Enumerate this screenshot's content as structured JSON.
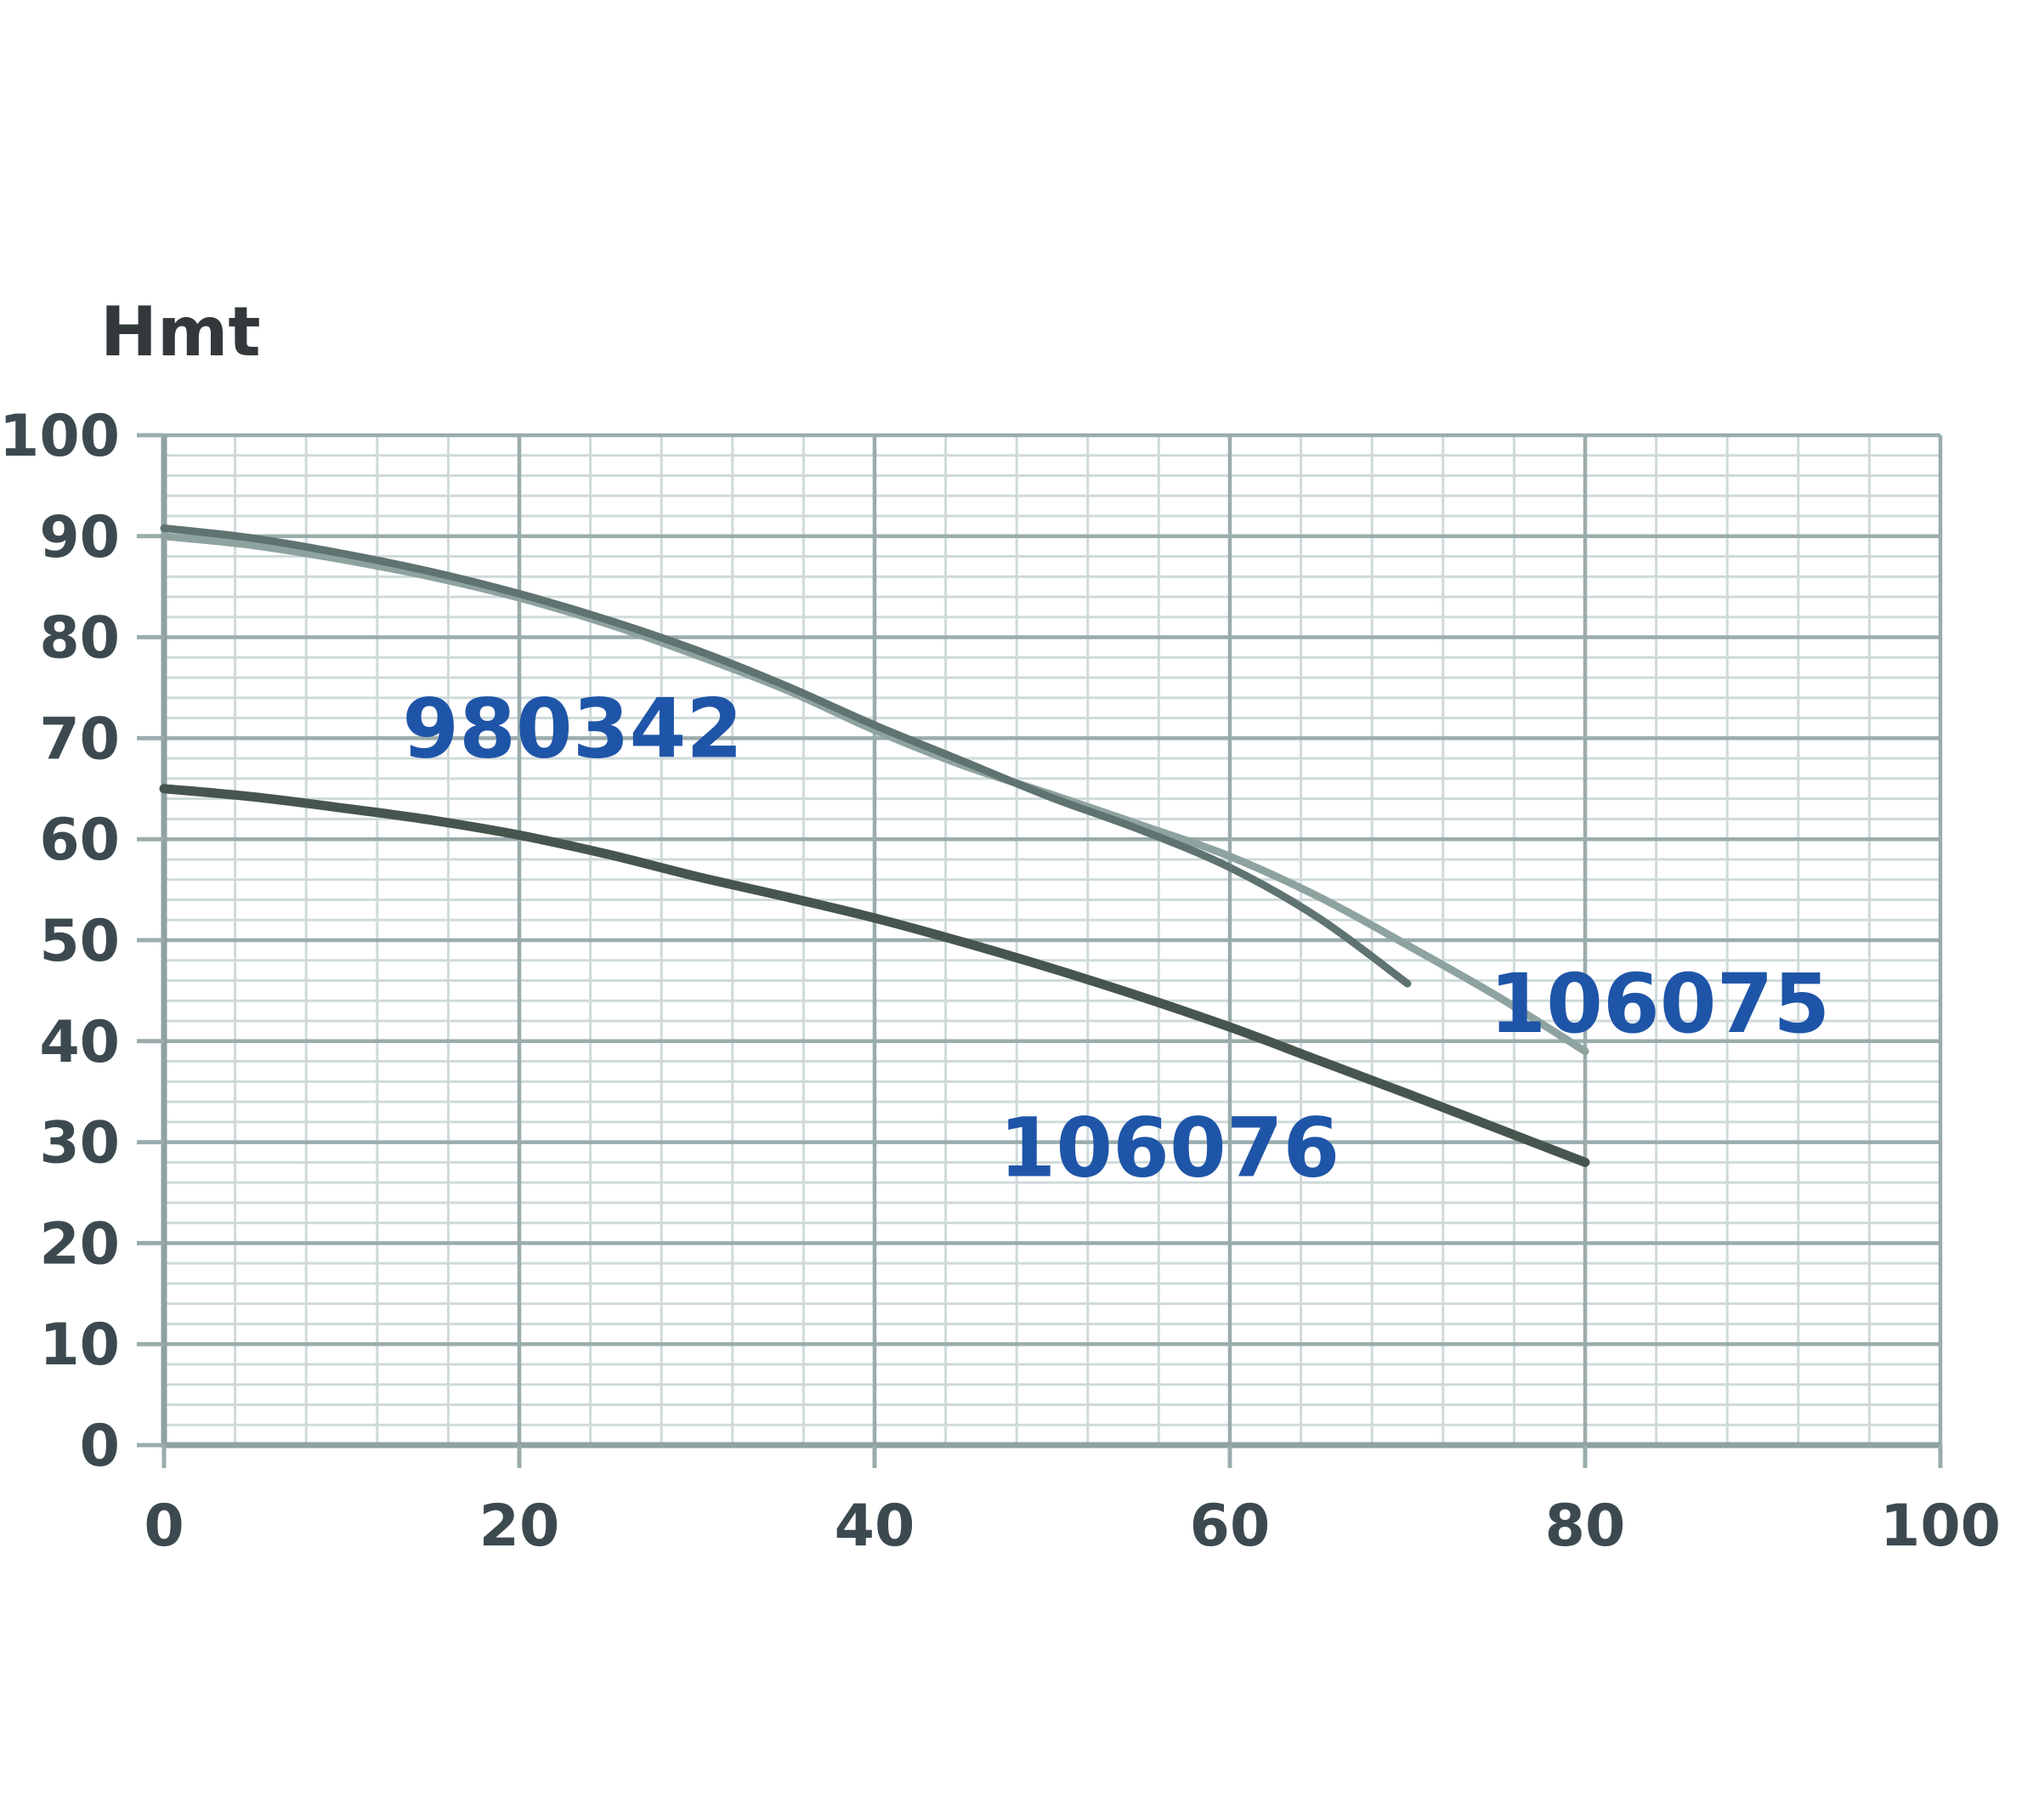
{
  "chart_data": {
    "type": "line",
    "title": "",
    "xlabel": "",
    "ylabel": "Hmt",
    "xlim": [
      0,
      100
    ],
    "ylim": [
      0,
      100
    ],
    "grid": true,
    "x_major_step": 20,
    "x_minor_step": 4,
    "y_major_step": 10,
    "y_minor_step": 2,
    "x_tick_labels": [
      "0",
      "20",
      "40",
      "60",
      "80",
      "100"
    ],
    "y_tick_labels": [
      "0",
      "10",
      "20",
      "30",
      "40",
      "50",
      "60",
      "70",
      "80",
      "90",
      "100"
    ],
    "legend_position": "inline-curve-labels",
    "series": [
      {
        "name": "106075",
        "color": "#8ea3a0",
        "stroke_width": 9,
        "label_anchor": {
          "x": 84.2,
          "y": 43.7
        },
        "points": [
          [
            0,
            90.0
          ],
          [
            5,
            89.1
          ],
          [
            10,
            87.7
          ],
          [
            15,
            86.0
          ],
          [
            20,
            83.9
          ],
          [
            25,
            81.3
          ],
          [
            30,
            78.2
          ],
          [
            35,
            74.8
          ],
          [
            40,
            70.8
          ],
          [
            45,
            67.3
          ],
          [
            50,
            64.4
          ],
          [
            55,
            61.4
          ],
          [
            60,
            58.3
          ],
          [
            65,
            54.3
          ],
          [
            70,
            49.5
          ],
          [
            75,
            44.5
          ],
          [
            80,
            39.0
          ]
        ]
      },
      {
        "name": "980342",
        "color": "#5f7370",
        "stroke_width": 9,
        "label_anchor": {
          "x": 23.0,
          "y": 70.9
        },
        "points": [
          [
            0,
            90.8
          ],
          [
            5,
            89.8
          ],
          [
            10,
            88.3
          ],
          [
            15,
            86.5
          ],
          [
            20,
            84.3
          ],
          [
            25,
            81.7
          ],
          [
            30,
            78.7
          ],
          [
            35,
            75.2
          ],
          [
            40,
            71.3
          ],
          [
            45,
            67.7
          ],
          [
            50,
            64.1
          ],
          [
            55,
            60.9
          ],
          [
            60,
            57.2
          ],
          [
            65,
            52.2
          ],
          [
            70,
            45.7
          ]
        ]
      },
      {
        "name": "106076",
        "color": "#47554f",
        "stroke_width": 11,
        "label_anchor": {
          "x": 56.6,
          "y": 29.4
        },
        "points": [
          [
            0,
            65.0
          ],
          [
            5,
            64.2
          ],
          [
            10,
            63.1
          ],
          [
            15,
            61.9
          ],
          [
            20,
            60.4
          ],
          [
            25,
            58.5
          ],
          [
            30,
            56.3
          ],
          [
            35,
            54.3
          ],
          [
            40,
            52.2
          ],
          [
            45,
            49.8
          ],
          [
            50,
            47.2
          ],
          [
            55,
            44.4
          ],
          [
            60,
            41.4
          ],
          [
            65,
            38.1
          ],
          [
            70,
            34.8
          ],
          [
            75,
            31.4
          ],
          [
            80,
            28.0
          ]
        ]
      }
    ],
    "colors": {
      "background": "#ffffff",
      "series_label": "#1f55a8",
      "tick_label": "#3c4a50",
      "axis_title": "#33393b",
      "grid_major": "#9aacac",
      "grid_minor": "#cfdada",
      "axis_line": "#8fa1a1"
    }
  }
}
